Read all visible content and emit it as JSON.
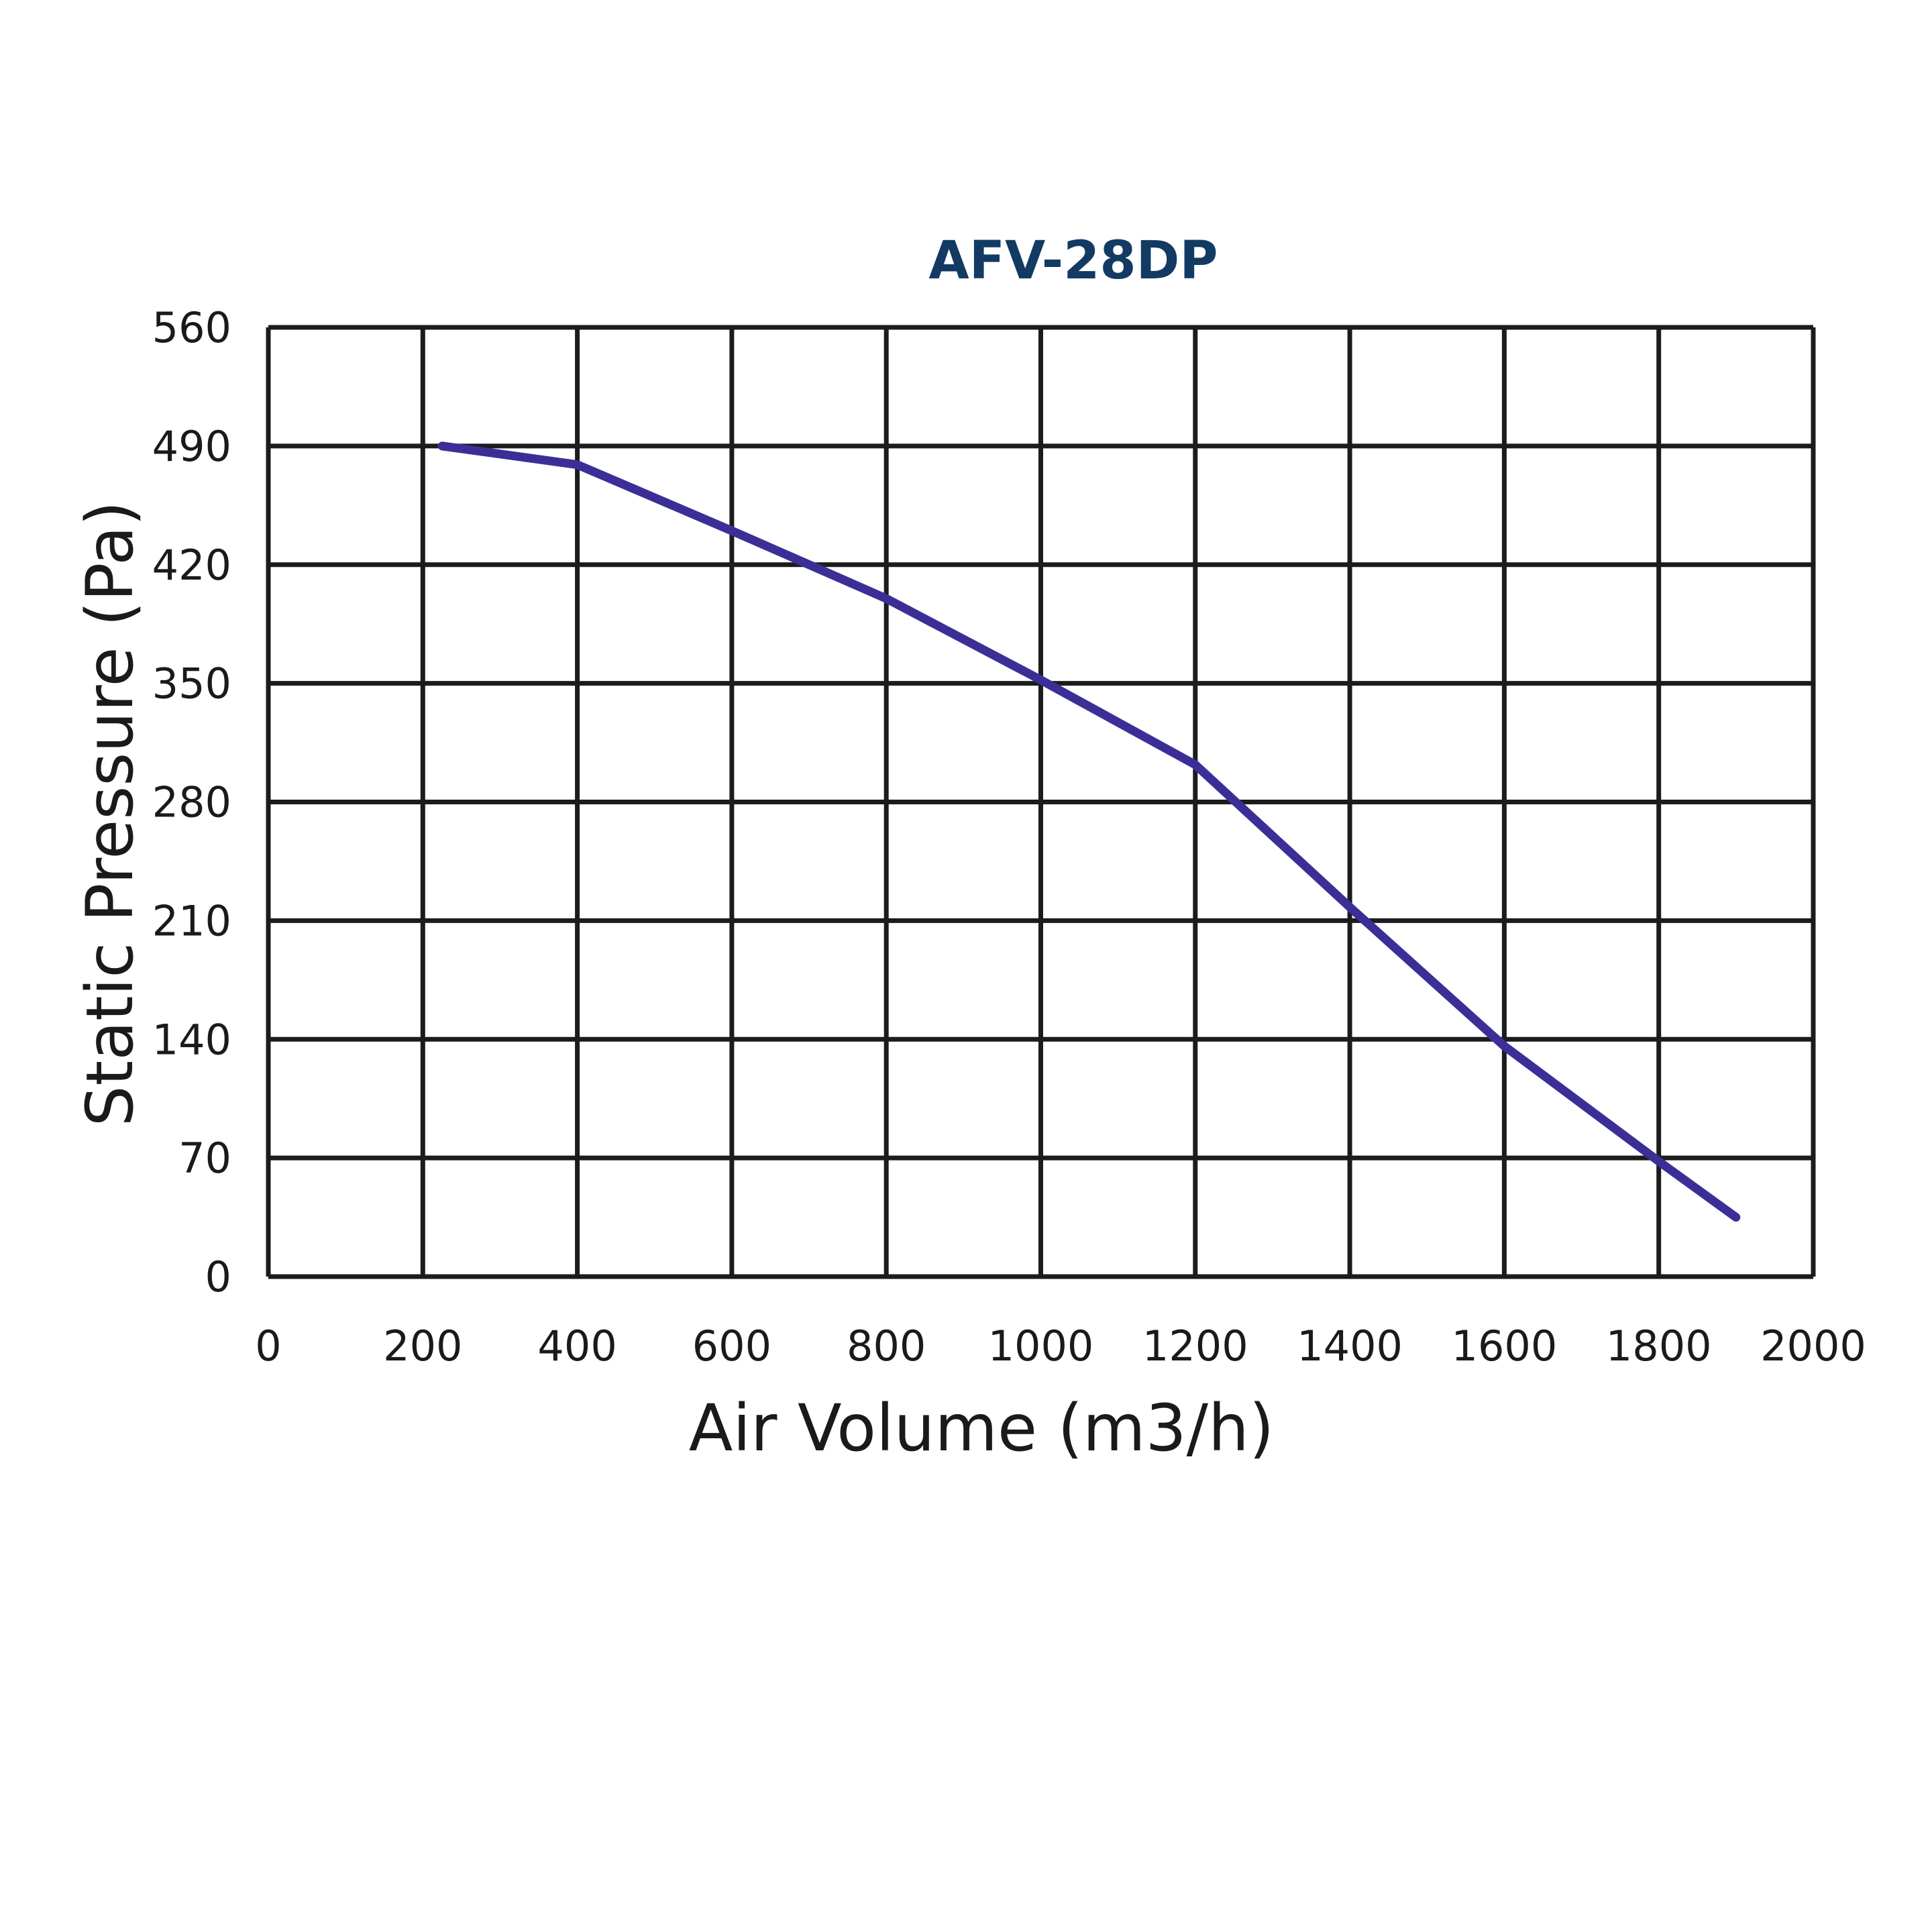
{
  "chart_data": {
    "type": "line",
    "title": "AFV-28DP",
    "xlabel": "Air Volume (m3/h)",
    "ylabel": "Static Pressure (Pa)",
    "xlim": [
      0,
      2000
    ],
    "ylim": [
      0,
      560
    ],
    "x_ticks": [
      0,
      200,
      400,
      600,
      800,
      1000,
      1200,
      1400,
      1600,
      1800,
      2000
    ],
    "y_ticks": [
      0,
      70,
      140,
      210,
      280,
      350,
      420,
      490,
      560
    ],
    "grid": true,
    "legend": "none",
    "series": [
      {
        "name": "AFV-28DP",
        "color": "#3b2f97",
        "x": [
          225,
          400,
          600,
          700,
          800,
          1000,
          1200,
          1400,
          1600,
          1800,
          1900
        ],
        "y": [
          490,
          479,
          440,
          420,
          400,
          352,
          302,
          218,
          136,
          68,
          35
        ]
      }
    ],
    "colors": {
      "title": "#123a63",
      "grid": "#1c1c1c",
      "text": "#1a1a1a"
    }
  }
}
